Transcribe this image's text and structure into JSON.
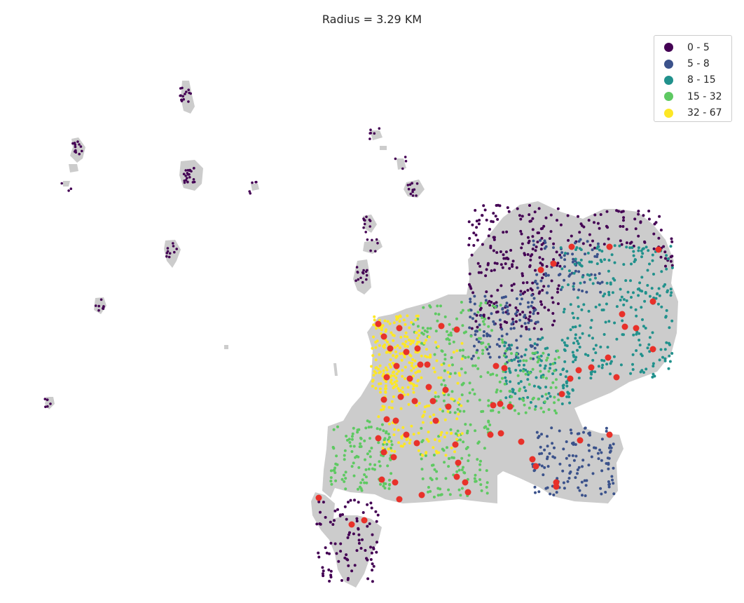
{
  "title": "Radius = 3.29 KM",
  "legend": [
    {
      "label": "0 - 5",
      "color": "#440154"
    },
    {
      "label": "5 - 8",
      "color": "#3b528b"
    },
    {
      "label": "8 - 15",
      "color": "#21918c"
    },
    {
      "label": "15 - 32",
      "color": "#5ec962"
    },
    {
      "label": "32 - 67",
      "color": "#fde725"
    }
  ],
  "colors": {
    "land": "#cccccc",
    "highlight": "#e8312a"
  }
}
